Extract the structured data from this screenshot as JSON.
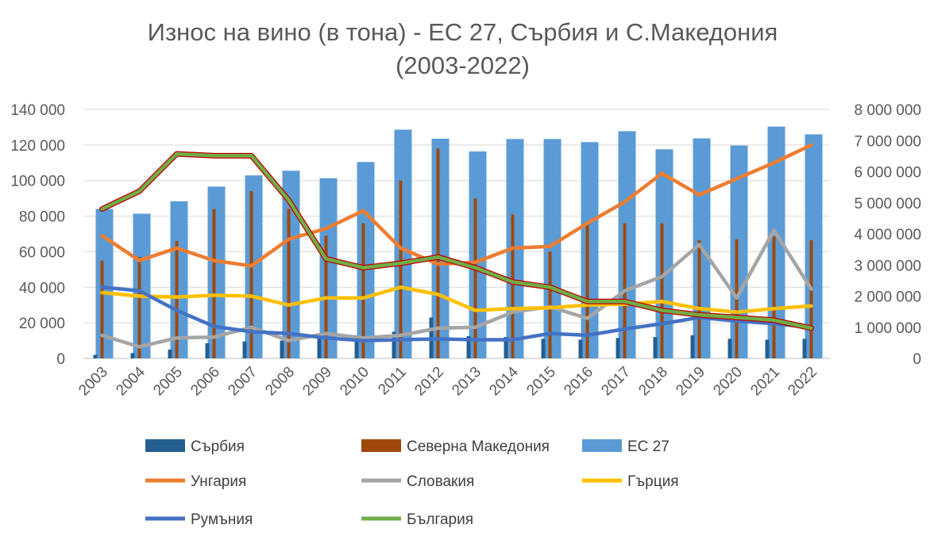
{
  "chart_data": {
    "type": "bar+line",
    "title_line1": "Износ на вино (в тона) - ЕС 27, Сърбия и С.Македония",
    "title_line2": "(2003-2022)",
    "categories": [
      "2003",
      "2004",
      "2005",
      "2006",
      "2007",
      "2008",
      "2009",
      "2010",
      "2011",
      "2012",
      "2013",
      "2014",
      "2015",
      "2016",
      "2017",
      "2018",
      "2019",
      "2020",
      "2021",
      "2022"
    ],
    "left_axis": {
      "min": 0,
      "max": 140000,
      "ticks": [
        "0",
        "20 000",
        "40 000",
        "60 000",
        "80 000",
        "100 000",
        "120 000",
        "140 000"
      ],
      "tick_values": [
        0,
        20000,
        40000,
        60000,
        80000,
        100000,
        120000,
        140000
      ]
    },
    "right_axis": {
      "min": 0,
      "max": 8000000,
      "ticks": [
        "0",
        "1 000 000",
        "2 000 000",
        "3 000 000",
        "4 000 000",
        "5 000 000",
        "6 000 000",
        "7 000 000",
        "8 000 000"
      ],
      "tick_values": [
        0,
        1000000,
        2000000,
        3000000,
        4000000,
        5000000,
        6000000,
        7000000,
        8000000
      ]
    },
    "bar_series": [
      {
        "name": "Сърбия",
        "axis": "left",
        "color": "#255E91",
        "values": [
          2000,
          3000,
          5000,
          8500,
          9500,
          10000,
          12000,
          10000,
          15000,
          23000,
          12500,
          12000,
          11000,
          10500,
          11500,
          12000,
          13000,
          11000,
          10500,
          11000
        ]
      },
      {
        "name": "Северна Македония",
        "axis": "left",
        "color": "#9E480E",
        "values": [
          55000,
          57000,
          66000,
          84000,
          94000,
          84000,
          69000,
          76000,
          100000,
          118000,
          90000,
          81000,
          60000,
          76000,
          76000,
          76000,
          66500,
          67000,
          68500,
          66500
        ]
      },
      {
        "name": "ЕС 27",
        "axis": "right",
        "color": "#5B9BD5",
        "values": [
          4800000,
          4650000,
          5050000,
          5520000,
          5880000,
          6030000,
          5790000,
          6310000,
          7350000,
          7060000,
          6650000,
          7050000,
          7050000,
          6950000,
          7300000,
          6720000,
          7070000,
          6840000,
          7450000,
          7200000
        ]
      }
    ],
    "line_series": [
      {
        "name": "Унгария",
        "axis": "left",
        "color": "#ED7D31",
        "values": [
          69000,
          55000,
          62000,
          55000,
          52000,
          67000,
          73000,
          83000,
          62000,
          53000,
          54000,
          62000,
          63000,
          76000,
          88000,
          104000,
          92000,
          101000,
          110000,
          120000
        ]
      },
      {
        "name": "Словакия",
        "axis": "left",
        "color": "#A5A5A5",
        "values": [
          13000,
          6500,
          11500,
          12000,
          17500,
          10000,
          14000,
          11500,
          13000,
          17000,
          17500,
          26000,
          29000,
          22500,
          38000,
          46000,
          64000,
          34000,
          72000,
          39000
        ]
      },
      {
        "name": "Гърция",
        "axis": "left",
        "color": "#FFC000",
        "values": [
          37000,
          35000,
          34500,
          35500,
          35000,
          30000,
          34000,
          34000,
          40000,
          36000,
          27000,
          28000,
          28500,
          30000,
          30500,
          32000,
          28000,
          26000,
          28000,
          29500
        ]
      },
      {
        "name": "Румъния",
        "axis": "left",
        "color": "#4472C4",
        "values": [
          40000,
          38000,
          27000,
          18000,
          15000,
          14000,
          11500,
          10000,
          10500,
          11000,
          10500,
          10500,
          14000,
          13000,
          16500,
          19500,
          23000,
          21000,
          19500,
          17500
        ]
      },
      {
        "name": "България",
        "axis": "left",
        "color": "#70AD47",
        "outline": "#C00000",
        "values": [
          84000,
          94000,
          115000,
          114000,
          114000,
          89000,
          56000,
          51000,
          53500,
          57000,
          51000,
          43000,
          40000,
          32000,
          32000,
          27000,
          24500,
          23000,
          21500,
          17000
        ]
      }
    ],
    "legend_order": [
      "Сърбия",
      "Северна Македония",
      "ЕС 27",
      "Унгария",
      "Словакия",
      "Гърция",
      "Румъния",
      "България"
    ]
  }
}
